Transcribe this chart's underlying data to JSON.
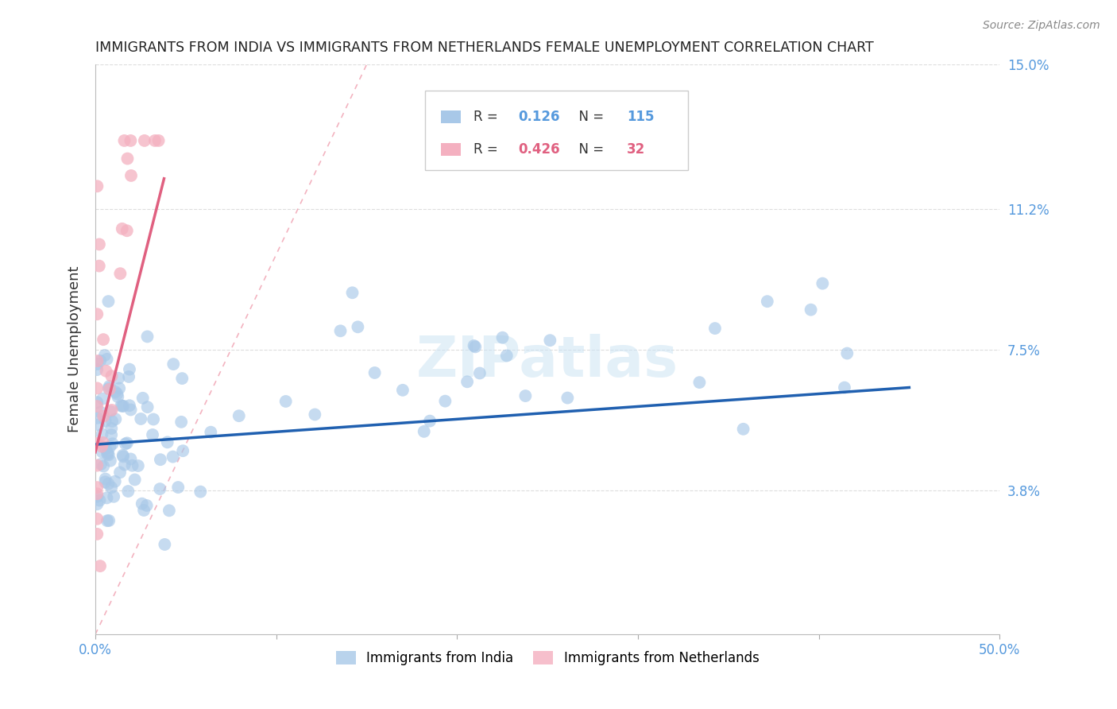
{
  "title": "IMMIGRANTS FROM INDIA VS IMMIGRANTS FROM NETHERLANDS FEMALE UNEMPLOYMENT CORRELATION CHART",
  "source": "Source: ZipAtlas.com",
  "ylabel": "Female Unemployment",
  "xlim": [
    0.0,
    0.5
  ],
  "ylim": [
    0.0,
    0.15
  ],
  "yticks_right": [
    0.038,
    0.075,
    0.112,
    0.15
  ],
  "yticklabels_right": [
    "3.8%",
    "7.5%",
    "11.2%",
    "15.0%"
  ],
  "india_R": 0.126,
  "india_N": 115,
  "netherlands_R": 0.426,
  "netherlands_N": 32,
  "india_color": "#a8c8e8",
  "netherlands_color": "#f4b0c0",
  "india_line_color": "#2060b0",
  "netherlands_line_color": "#e06080",
  "diag_color": "#f0a0b0",
  "watermark": "ZIPatlas",
  "legend_india": "Immigrants from India",
  "legend_netherlands": "Immigrants from Netherlands",
  "bg_color": "#ffffff",
  "grid_color": "#dddddd",
  "tick_color": "#5599dd",
  "title_color": "#222222",
  "ylabel_color": "#333333",
  "source_color": "#888888"
}
